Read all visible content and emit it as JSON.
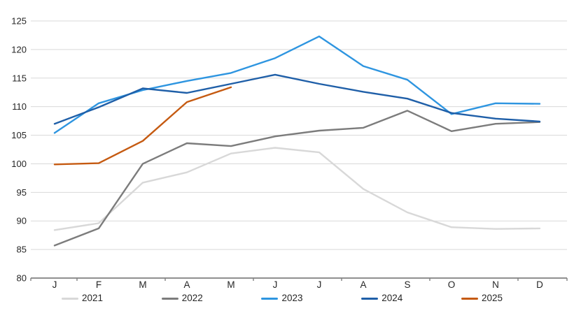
{
  "chart_data": {
    "type": "line",
    "title": "",
    "xlabel": "",
    "ylabel": "",
    "categories": [
      "J",
      "F",
      "M",
      "A",
      "M",
      "J",
      "J",
      "A",
      "S",
      "O",
      "N",
      "D"
    ],
    "y_axis": {
      "min": 80,
      "max": 125,
      "step": 5,
      "tick_labels": [
        "80",
        "85",
        "90",
        "95",
        "100",
        "105",
        "110",
        "115",
        "120",
        "125"
      ]
    },
    "grid": true,
    "legend_position": "bottom",
    "colors": {
      "grid": "#D9D9D9",
      "axis": "#808080",
      "text": "#262626"
    },
    "series": [
      {
        "name": "2021",
        "color": "#D8D8D8",
        "values": [
          88.4,
          89.6,
          96.7,
          98.5,
          101.8,
          102.8,
          102.0,
          95.6,
          91.5,
          88.9,
          88.6,
          88.7
        ]
      },
      {
        "name": "2022",
        "color": "#7C7C7C",
        "values": [
          85.7,
          88.7,
          100.0,
          103.6,
          103.1,
          104.8,
          105.8,
          106.3,
          109.3,
          105.7,
          107.0,
          107.3
        ]
      },
      {
        "name": "2023",
        "color": "#2E95E0",
        "values": [
          105.4,
          110.6,
          112.9,
          114.5,
          115.9,
          118.5,
          122.3,
          117.1,
          114.7,
          108.7,
          110.6,
          110.5
        ]
      },
      {
        "name": "2024",
        "color": "#1F5FA8",
        "values": [
          107.0,
          109.9,
          113.2,
          112.4,
          114.0,
          115.6,
          114.0,
          112.6,
          111.4,
          108.9,
          107.9,
          107.4
        ]
      },
      {
        "name": "2025",
        "color": "#C55A11",
        "values": [
          99.9,
          100.1,
          104.0,
          110.8,
          113.4
        ]
      }
    ]
  }
}
